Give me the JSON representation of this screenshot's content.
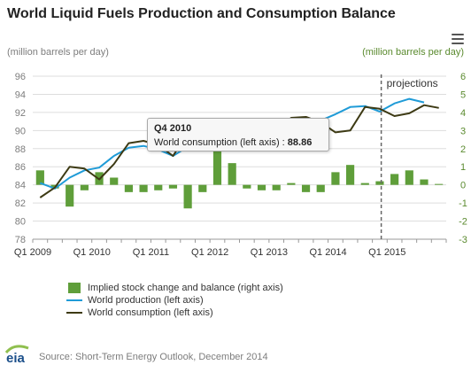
{
  "chart_data": {
    "type": "bar+line",
    "title": "World Liquid Fuels Production and Consumption Balance",
    "left_axis_label": "(million barrels per day)",
    "right_axis_label": "(million barrels per day)",
    "left_axis": {
      "min": 78,
      "max": 96,
      "ticks": [
        "78",
        "80",
        "82",
        "84",
        "86",
        "88",
        "90",
        "92",
        "94",
        "96"
      ]
    },
    "right_axis": {
      "min": -3,
      "max": 6,
      "ticks": [
        "-3",
        "-2",
        "-1",
        "0",
        "1",
        "2",
        "3",
        "4",
        "5",
        "6"
      ]
    },
    "x_labels": [
      "Q1 2009",
      "Q1 2010",
      "Q1 2011",
      "Q1 2012",
      "Q1 2013",
      "Q1 2014",
      "Q1 2015"
    ],
    "quarters": [
      "Q1 2009",
      "Q2 2009",
      "Q3 2009",
      "Q4 2009",
      "Q1 2010",
      "Q2 2010",
      "Q3 2010",
      "Q4 2010",
      "Q1 2011",
      "Q2 2011",
      "Q3 2011",
      "Q4 2011",
      "Q1 2012",
      "Q2 2012",
      "Q3 2012",
      "Q4 2012",
      "Q1 2013",
      "Q2 2013",
      "Q3 2013",
      "Q4 2013",
      "Q1 2014",
      "Q2 2014",
      "Q3 2014",
      "Q4 2014",
      "Q1 2015",
      "Q2 2015",
      "Q3 2015",
      "Q4 2015"
    ],
    "series": [
      {
        "name": "Implied stock change and balance (right axis)",
        "type": "bar",
        "axis": "right",
        "color": "#5f9e3a",
        "values": [
          0.8,
          -0.2,
          -1.2,
          -0.3,
          0.7,
          0.4,
          -0.4,
          -0.4,
          -0.3,
          -0.2,
          -1.3,
          -0.4,
          2.0,
          1.2,
          -0.2,
          -0.3,
          -0.3,
          0.1,
          -0.4,
          -0.4,
          0.7,
          1.1,
          0.1,
          0.2,
          0.6,
          0.8,
          0.3,
          0.05
        ]
      },
      {
        "name": "World production (left axis)",
        "type": "line",
        "axis": "left",
        "color": "#1f9bd7",
        "values": [
          84.2,
          83.6,
          84.8,
          85.6,
          85.9,
          87.2,
          88.1,
          88.3,
          87.9,
          87.2,
          88.2,
          89.4,
          90.1,
          89.9,
          89.6,
          90.3,
          90.5,
          91.0,
          90.7,
          91.1,
          91.8,
          92.6,
          92.7,
          92.1,
          93.0,
          93.5,
          93.1,
          null
        ]
      },
      {
        "name": "World consumption (left axis)",
        "type": "line",
        "axis": "left",
        "color": "#3d3a14",
        "values": [
          82.6,
          83.7,
          86.0,
          85.8,
          84.6,
          86.3,
          88.6,
          88.86,
          88.4,
          87.2,
          89.7,
          90.1,
          88.2,
          89.0,
          89.9,
          90.9,
          90.2,
          91.4,
          91.5,
          90.9,
          89.8,
          90.0,
          92.6,
          92.4,
          91.6,
          91.9,
          92.8,
          92.5
        ]
      }
    ],
    "annotation": {
      "label": "projections",
      "after_quarter": "Q4 2014"
    },
    "legend_position": "bottom"
  },
  "tooltip": {
    "title": "Q4 2010",
    "label": "World consumption (left axis) : ",
    "value": "88.86"
  },
  "source": "Source: Short-Term Energy Outlook, December 2014",
  "logo_text": "eia",
  "colors": {
    "grid": "#dddddd",
    "axis": "#999999",
    "left_label": "#7d7d7d",
    "right_label": "#5a8a2e"
  }
}
